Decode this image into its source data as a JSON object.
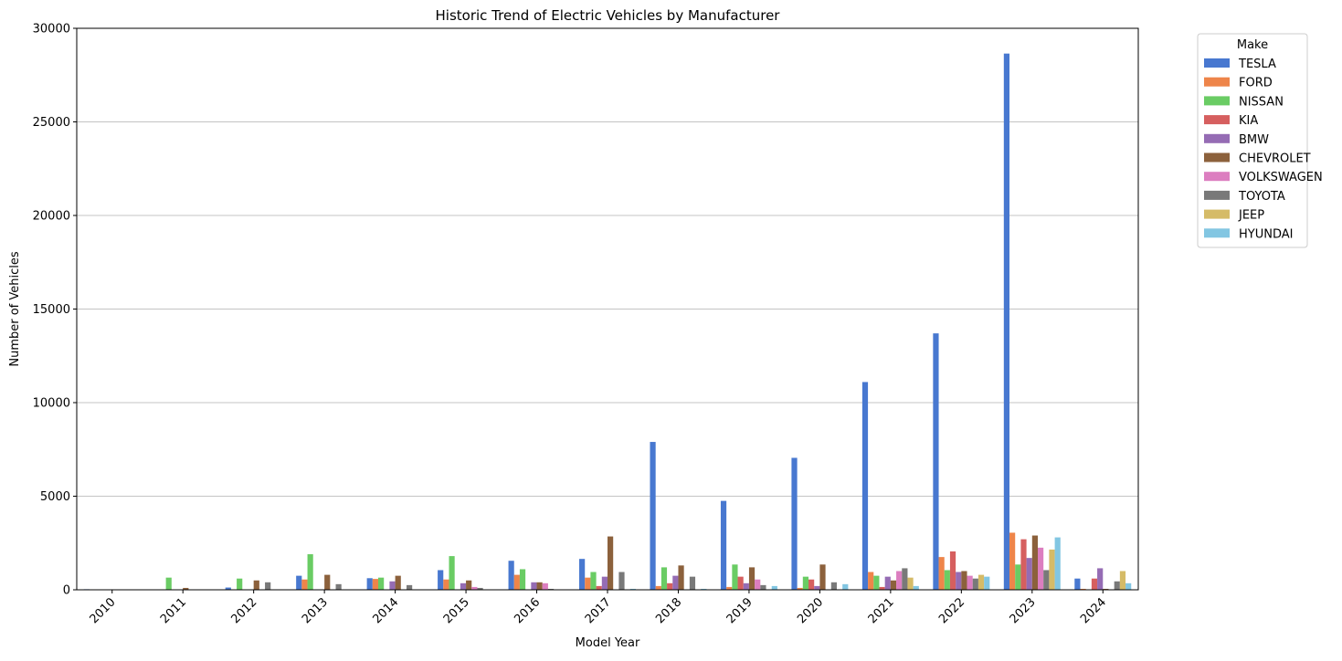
{
  "chart_data": {
    "type": "bar",
    "title": "Historic Trend of Electric Vehicles by Manufacturer",
    "xlabel": "Model Year",
    "ylabel": "Number of Vehicles",
    "ylim": [
      0,
      30000
    ],
    "yticks": [
      0,
      5000,
      10000,
      15000,
      20000,
      25000,
      30000
    ],
    "grid": "horizontal",
    "legend_title": "Make",
    "legend_position": "outside-top-right",
    "categories": [
      "2010",
      "2011",
      "2012",
      "2013",
      "2014",
      "2015",
      "2016",
      "2017",
      "2018",
      "2019",
      "2020",
      "2021",
      "2022",
      "2023",
      "2024"
    ],
    "series": [
      {
        "name": "TESLA",
        "color": "#4878d0",
        "values": [
          30,
          0,
          120,
          750,
          620,
          1050,
          1550,
          1650,
          7900,
          4750,
          7050,
          11100,
          13700,
          28650,
          600
        ]
      },
      {
        "name": "FORD",
        "color": "#ee854a",
        "values": [
          0,
          0,
          0,
          550,
          580,
          550,
          800,
          650,
          200,
          150,
          100,
          950,
          1750,
          3050,
          50
        ]
      },
      {
        "name": "NISSAN",
        "color": "#6acc64",
        "values": [
          0,
          650,
          600,
          1900,
          650,
          1800,
          1100,
          950,
          1200,
          1350,
          700,
          750,
          1050,
          1350,
          0
        ]
      },
      {
        "name": "KIA",
        "color": "#d65f5f",
        "values": [
          0,
          0,
          0,
          0,
          0,
          0,
          0,
          200,
          350,
          700,
          550,
          150,
          2050,
          2700,
          600
        ]
      },
      {
        "name": "BMW",
        "color": "#956cb4",
        "values": [
          0,
          0,
          0,
          0,
          450,
          350,
          400,
          700,
          750,
          350,
          200,
          700,
          950,
          1700,
          1150
        ]
      },
      {
        "name": "CHEVROLET",
        "color": "#8c613c",
        "values": [
          0,
          100,
          500,
          800,
          750,
          500,
          400,
          2850,
          1300,
          1200,
          1350,
          500,
          1000,
          2900,
          50
        ]
      },
      {
        "name": "VOLKSWAGEN",
        "color": "#dc7ec0",
        "values": [
          0,
          0,
          0,
          0,
          0,
          150,
          350,
          0,
          0,
          550,
          0,
          1000,
          750,
          2250,
          0
        ]
      },
      {
        "name": "TOYOTA",
        "color": "#797979",
        "values": [
          0,
          0,
          400,
          300,
          250,
          100,
          50,
          950,
          700,
          250,
          400,
          1150,
          600,
          1050,
          450
        ]
      },
      {
        "name": "JEEP",
        "color": "#d5bb67",
        "values": [
          0,
          0,
          0,
          0,
          0,
          0,
          0,
          0,
          0,
          0,
          0,
          650,
          800,
          2150,
          1000
        ]
      },
      {
        "name": "HYUNDAI",
        "color": "#82c6e2",
        "values": [
          0,
          0,
          0,
          0,
          0,
          0,
          0,
          50,
          50,
          200,
          300,
          200,
          700,
          2800,
          350
        ]
      }
    ]
  }
}
